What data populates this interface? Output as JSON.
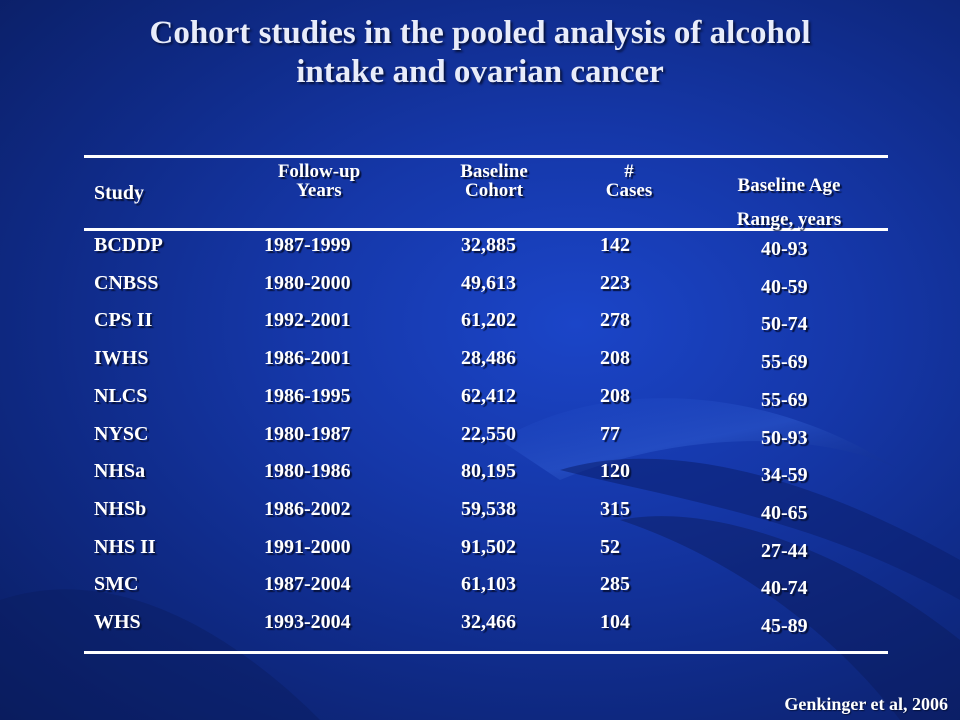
{
  "title": {
    "line1": "Cohort studies in the pooled analysis of alcohol",
    "line2": "intake and ovarian cancer"
  },
  "table": {
    "headers": {
      "study": "Study",
      "followup_line1": "Follow-up",
      "followup_line2": "Years",
      "baseline_line1": "Baseline",
      "baseline_line2": "Cohort",
      "cases_line1": "#",
      "cases_line2": "Cases",
      "age_line1": "Baseline Age",
      "age_line2": "Range, years"
    },
    "rows": [
      {
        "study": "BCDDP",
        "years": "1987-1999",
        "cohort": "32,885",
        "cases": "142",
        "age": "40-93"
      },
      {
        "study": "CNBSS",
        "years": "1980-2000",
        "cohort": "49,613",
        "cases": "223",
        "age": "40-59"
      },
      {
        "study": "CPS II",
        "years": "1992-2001",
        "cohort": "61,202",
        "cases": "278",
        "age": "50-74"
      },
      {
        "study": "IWHS",
        "years": "1986-2001",
        "cohort": "28,486",
        "cases": "208",
        "age": "55-69"
      },
      {
        "study": "NLCS",
        "years": "1986-1995",
        "cohort": "62,412",
        "cases": "208",
        "age": "55-69"
      },
      {
        "study": "NYSC",
        "years": "1980-1987",
        "cohort": "22,550",
        "cases": "77",
        "age": "50-93"
      },
      {
        "study": "NHSa",
        "years": "1980-1986",
        "cohort": "80,195",
        "cases": "120",
        "age": "34-59"
      },
      {
        "study": "NHSb",
        "years": "1986-2002",
        "cohort": "59,538",
        "cases": "315",
        "age": "40-65"
      },
      {
        "study": "NHS II",
        "years": "1991-2000",
        "cohort": "91,502",
        "cases": "52",
        "age": "27-44"
      },
      {
        "study": "SMC",
        "years": "1987-2004",
        "cohort": "61,103",
        "cases": "285",
        "age": "40-74"
      },
      {
        "study": "WHS",
        "years": "1993-2004",
        "cohort": "32,466",
        "cases": "104",
        "age": "45-89"
      }
    ]
  },
  "citation": "Genkinger et al, 2006"
}
